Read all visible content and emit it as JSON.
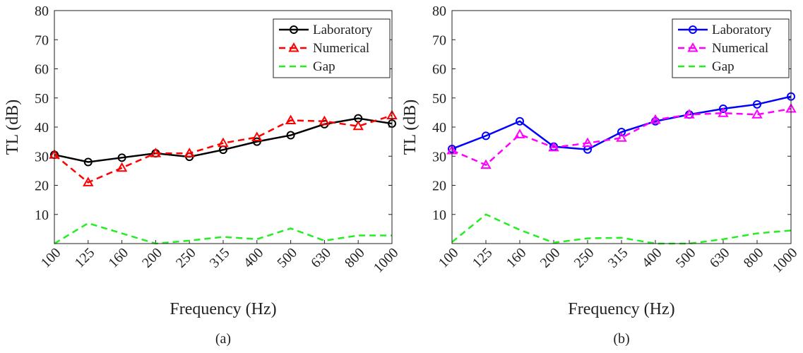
{
  "chart_data": [
    {
      "type": "line",
      "caption": "(a)",
      "x_label": "Frequency (Hz)",
      "y_label": "TL (dB)",
      "categories": [
        "100",
        "125",
        "160",
        "200",
        "250",
        "315",
        "400",
        "500",
        "630",
        "800",
        "1000"
      ],
      "ylim": [
        0,
        80
      ],
      "yticks": [
        10,
        20,
        30,
        40,
        50,
        60,
        70,
        80
      ],
      "legend": "upper right",
      "series": [
        {
          "name": "Laboratory",
          "color": "#000000",
          "linestyle": "solid",
          "marker": "circle",
          "values": [
            30.5,
            28,
            29.5,
            31,
            29.8,
            32.2,
            35,
            37.2,
            41,
            43,
            41.2
          ]
        },
        {
          "name": "Numerical",
          "color": "#ff0000",
          "linestyle": "dashed",
          "marker": "triangle",
          "values": [
            30.5,
            21,
            26,
            31,
            31,
            34.5,
            36.5,
            42.3,
            42,
            40.3,
            44
          ]
        },
        {
          "name": "Gap",
          "color": "#22ee22",
          "linestyle": "dashed",
          "values": [
            0,
            7,
            3.5,
            0,
            1,
            2.3,
            1.5,
            5.2,
            1,
            2.8,
            2.8
          ]
        }
      ]
    },
    {
      "type": "line",
      "caption": "(b)",
      "x_label": "Frequency (Hz)",
      "y_label": "TL (dB)",
      "categories": [
        "100",
        "125",
        "160",
        "200",
        "250",
        "315",
        "400",
        "500",
        "630",
        "800",
        "1000"
      ],
      "ylim": [
        0,
        80
      ],
      "yticks": [
        10,
        20,
        30,
        40,
        50,
        60,
        70,
        80
      ],
      "legend": "upper right",
      "series": [
        {
          "name": "Laboratory",
          "color": "#0000ff",
          "linestyle": "solid",
          "marker": "circle",
          "values": [
            32.5,
            37,
            42,
            33.3,
            32.3,
            38.3,
            42,
            44.3,
            46.3,
            47.8,
            50.5
          ]
        },
        {
          "name": "Numerical",
          "color": "#ff00ff",
          "linestyle": "dashed",
          "marker": "triangle",
          "values": [
            32,
            27,
            37.5,
            33,
            34.5,
            36.3,
            42.5,
            44.3,
            44.8,
            44.3,
            46.3
          ]
        },
        {
          "name": "Gap",
          "color": "#22ee22",
          "linestyle": "dashed",
          "values": [
            0.5,
            10,
            4.7,
            0.3,
            1.8,
            2,
            0,
            0,
            1.5,
            3.5,
            4.5
          ]
        }
      ]
    }
  ]
}
